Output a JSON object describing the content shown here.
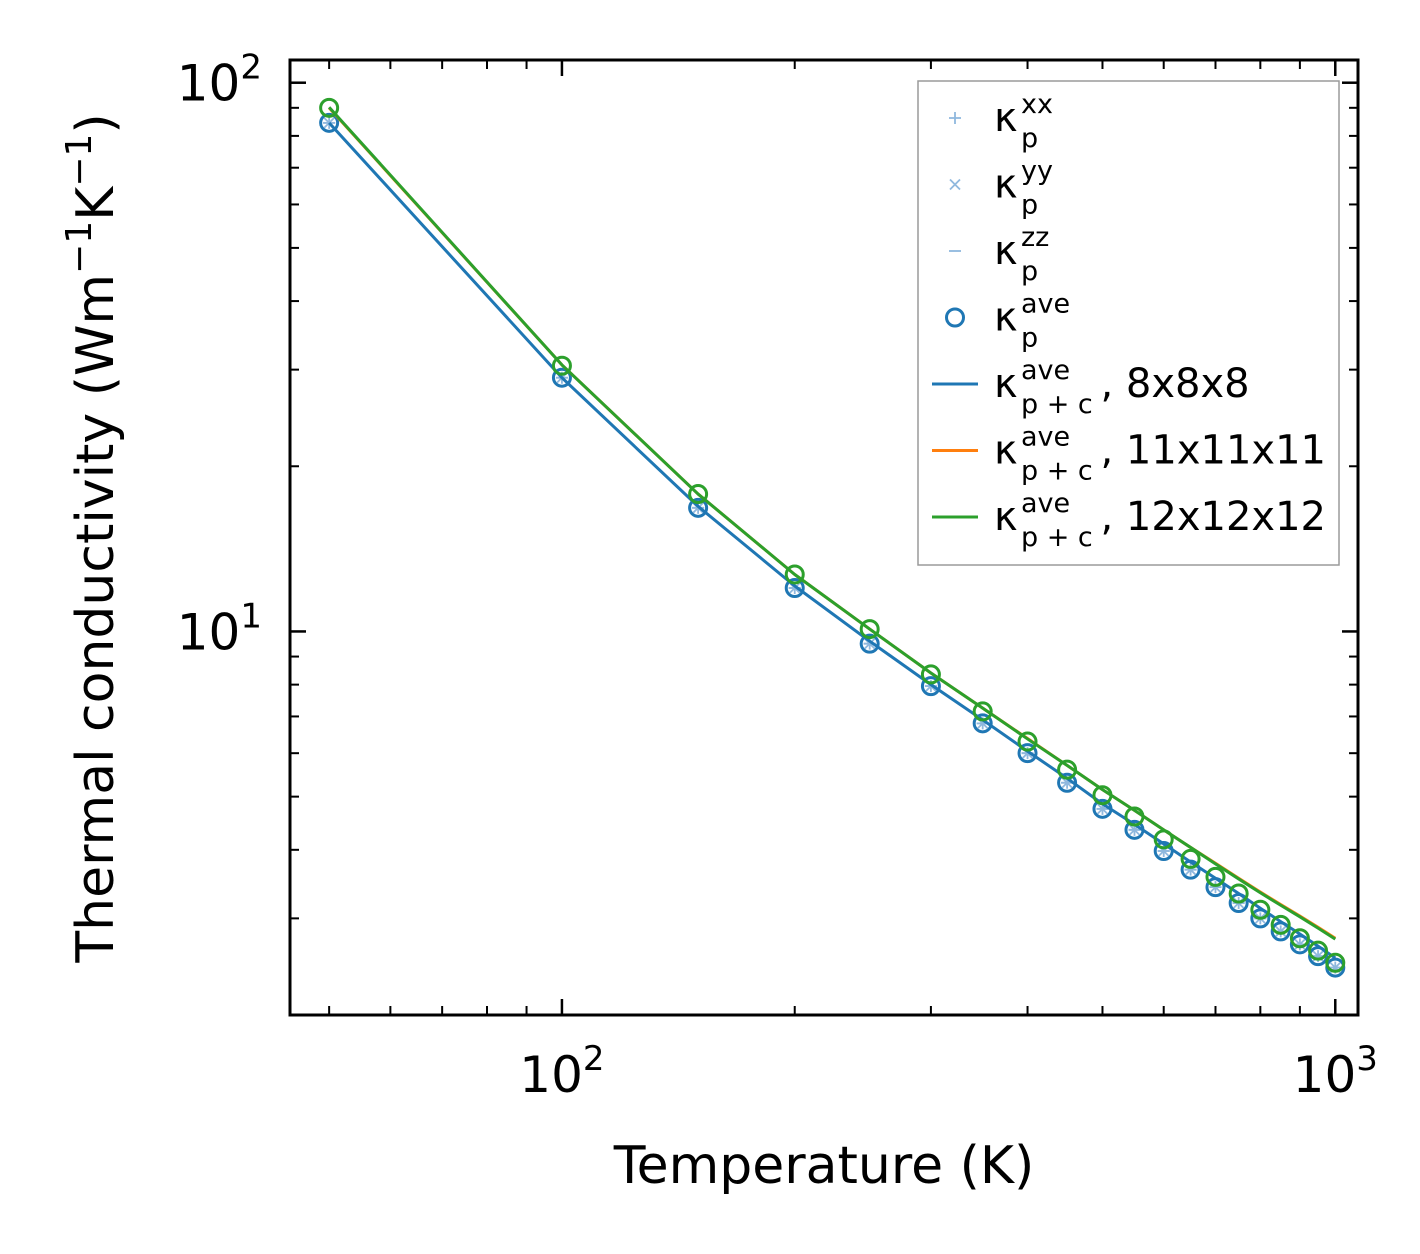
{
  "chart_data": {
    "type": "scatter",
    "xscale": "log",
    "yscale": "log",
    "xlim": [
      44.5,
      1070
    ],
    "ylim": [
      2,
      110
    ],
    "xlabel": "Temperature (K)",
    "ylabel": {
      "main": "Thermal conductivity (Wm",
      "sup1": "−1",
      "mid": "K",
      "sup2": "−1",
      "end": ")"
    },
    "x_ticks": [
      {
        "value": 100,
        "base": "10",
        "exp": "2"
      },
      {
        "value": 1000,
        "base": "10",
        "exp": "3"
      }
    ],
    "y_ticks": [
      {
        "value": 10,
        "base": "10",
        "exp": "1"
      },
      {
        "value": 100,
        "base": "10",
        "exp": "2"
      }
    ],
    "temperatures": [
      50,
      100,
      150,
      200,
      250,
      300,
      350,
      400,
      450,
      500,
      550,
      600,
      650,
      700,
      750,
      800,
      850,
      900,
      950,
      1000
    ],
    "series": [
      {
        "name": "kappa_p_xx",
        "kind": "marker",
        "marker": "plus",
        "color": "#8fb8de",
        "values": [
          84.5,
          29.0,
          16.8,
          12.0,
          9.5,
          7.95,
          6.8,
          6.0,
          5.3,
          4.75,
          4.35,
          3.98,
          3.68,
          3.42,
          3.2,
          3.0,
          2.84,
          2.69,
          2.56,
          2.44
        ]
      },
      {
        "name": "kappa_p_yy",
        "kind": "marker",
        "marker": "x",
        "color": "#8fb8de",
        "values": [
          84.5,
          29.0,
          16.8,
          12.0,
          9.5,
          7.95,
          6.8,
          6.0,
          5.3,
          4.75,
          4.35,
          3.98,
          3.68,
          3.42,
          3.2,
          3.0,
          2.84,
          2.69,
          2.56,
          2.44
        ]
      },
      {
        "name": "kappa_p_zz",
        "kind": "marker",
        "marker": "dash",
        "color": "#8fb8de",
        "values": [
          84.5,
          29.0,
          16.8,
          12.0,
          9.5,
          7.95,
          6.8,
          6.0,
          5.3,
          4.75,
          4.35,
          3.98,
          3.68,
          3.42,
          3.2,
          3.0,
          2.84,
          2.69,
          2.56,
          2.44
        ]
      },
      {
        "name": "kappa_p_ave",
        "kind": "marker",
        "marker": "circle",
        "color": "#1f77b4",
        "values": [
          84.5,
          29.0,
          16.8,
          12.0,
          9.5,
          7.95,
          6.8,
          6.0,
          5.3,
          4.75,
          4.35,
          3.98,
          3.68,
          3.42,
          3.2,
          3.0,
          2.84,
          2.69,
          2.56,
          2.44
        ]
      },
      {
        "name": "kappa_pc_ave_8x8x8",
        "kind": "line",
        "color": "#1f77b4",
        "values": [
          84.5,
          29.0,
          16.9,
          12.1,
          9.6,
          8.0,
          6.9,
          6.05,
          5.4,
          4.85,
          4.45,
          4.1,
          3.8,
          3.55,
          3.33,
          3.13,
          2.96,
          2.81,
          2.67,
          2.54
        ]
      },
      {
        "name": "kappa_pc_ave_11x11x11",
        "kind": "line",
        "color": "#ff7f0e",
        "values": [
          90.0,
          30.6,
          17.8,
          12.7,
          10.1,
          8.4,
          7.25,
          6.38,
          5.7,
          5.15,
          4.72,
          4.35,
          4.04,
          3.78,
          3.55,
          3.35,
          3.18,
          3.03,
          2.89,
          2.76
        ]
      },
      {
        "name": "kappa_pc_ave_12x12x12",
        "kind": "line",
        "color": "#2ca02c",
        "values": [
          90.2,
          30.6,
          17.8,
          12.7,
          10.1,
          8.4,
          7.25,
          6.37,
          5.7,
          5.15,
          4.72,
          4.35,
          4.04,
          3.77,
          3.54,
          3.34,
          3.17,
          3.02,
          2.88,
          2.75
        ]
      },
      {
        "name": "kappa_p_ave_12x12x12_points",
        "kind": "marker",
        "marker": "circle",
        "color": "#2ca02c",
        "values": [
          90.0,
          30.5,
          17.8,
          12.7,
          10.1,
          8.35,
          7.15,
          6.3,
          5.6,
          5.03,
          4.6,
          4.18,
          3.85,
          3.57,
          3.33,
          3.11,
          2.92,
          2.76,
          2.62,
          2.49
        ]
      }
    ],
    "legend": {
      "placement": "top-right",
      "entries": [
        {
          "kind": "marker",
          "marker": "plus",
          "color": "#8fb8de",
          "kappa": "κ",
          "sub": "p",
          "sup": "xx",
          "suffix": ""
        },
        {
          "kind": "marker",
          "marker": "x",
          "color": "#8fb8de",
          "kappa": "κ",
          "sub": "p",
          "sup": "yy",
          "suffix": ""
        },
        {
          "kind": "marker",
          "marker": "dash",
          "color": "#8fb8de",
          "kappa": "κ",
          "sub": "p",
          "sup": "zz",
          "suffix": ""
        },
        {
          "kind": "marker",
          "marker": "circle",
          "color": "#1f77b4",
          "kappa": "κ",
          "sub": "p",
          "sup": "ave",
          "suffix": ""
        },
        {
          "kind": "line",
          "color": "#1f77b4",
          "kappa": "κ",
          "sub": "p + c",
          "sup": "ave",
          "suffix": ", 8x8x8"
        },
        {
          "kind": "line",
          "color": "#ff7f0e",
          "kappa": "κ",
          "sub": "p + c",
          "sup": "ave",
          "suffix": ", 11x11x11"
        },
        {
          "kind": "line",
          "color": "#2ca02c",
          "kappa": "κ",
          "sub": "p + c",
          "sup": "ave",
          "suffix": ", 12x12x12"
        }
      ]
    }
  }
}
